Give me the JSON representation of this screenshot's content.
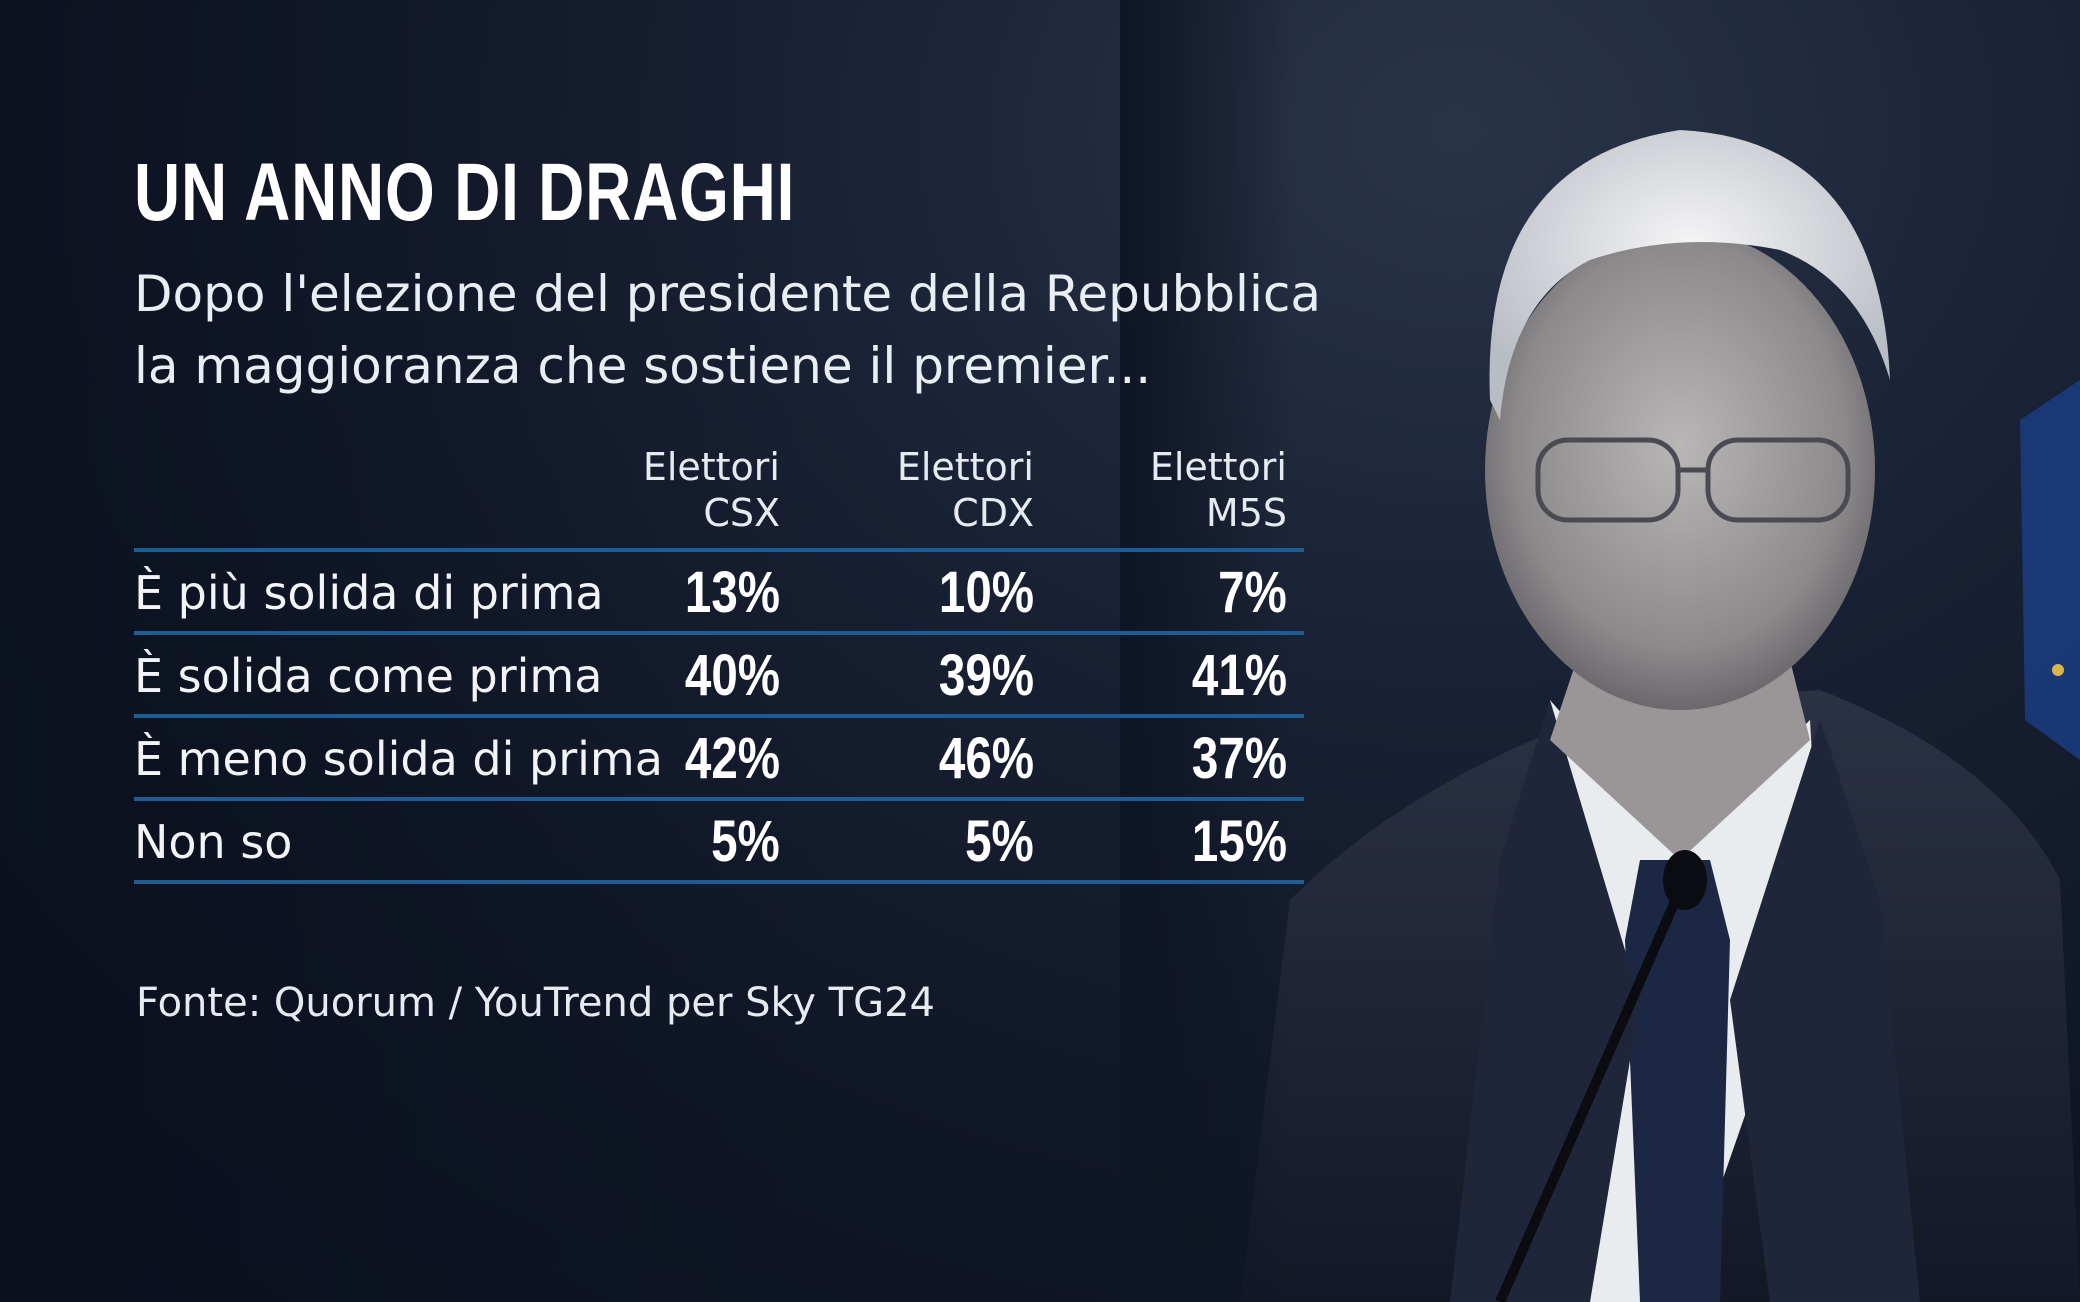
{
  "title": "UN ANNO DI DRAGHI",
  "subtitle": {
    "line1": "Dopo l'elezione del presidente della Repubblica",
    "line2": "la maggioranza che sostiene il premier..."
  },
  "source": "Fonte: Quorum / YouTrend per Sky TG24",
  "chart_data": {
    "type": "table",
    "columns": [
      {
        "line1": "Elettori",
        "line2": "CSX"
      },
      {
        "line1": "Elettori",
        "line2": "CDX"
      },
      {
        "line1": "Elettori",
        "line2": "M5S"
      }
    ],
    "rows": [
      {
        "label": "È più solida di prima",
        "values": [
          "13%",
          "10%",
          "7%"
        ]
      },
      {
        "label": "È solida come prima",
        "values": [
          "40%",
          "39%",
          "41%"
        ]
      },
      {
        "label": "È meno solida di prima",
        "values": [
          "42%",
          "46%",
          "37%"
        ]
      },
      {
        "label": "Non so",
        "values": [
          "5%",
          "5%",
          "15%"
        ]
      }
    ]
  },
  "colors": {
    "background": "#0e1524",
    "rule": "#1d5d93",
    "text": "#ffffff"
  }
}
